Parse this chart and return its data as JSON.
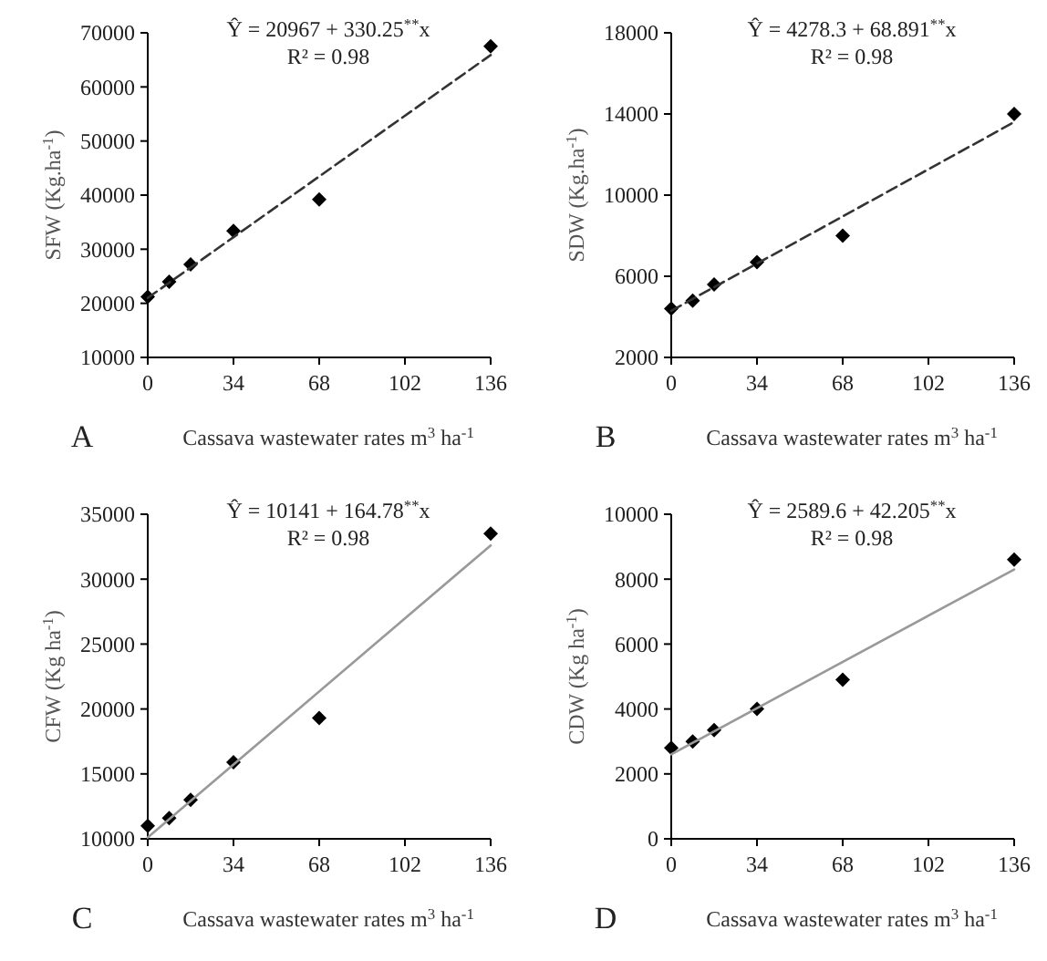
{
  "chart_data": [
    {
      "type": "scatter",
      "ylabel": "SFW (Kg.ha$^{-1}$)",
      "xlabel": "Cassava wastewater rates m$^{3}$ ha$^{-1}$",
      "annotations": [
        "Ŷ = 20967 + 330.25$^{**}$x",
        "R² = 0.98",
        "A"
      ],
      "xlim": [
        0,
        136
      ],
      "xticks": [
        0,
        34,
        68,
        102,
        136
      ],
      "ylim": [
        10000,
        70000
      ],
      "yticks": [
        10000,
        20000,
        30000,
        40000,
        50000,
        60000,
        70000
      ],
      "series": [
        {
          "color": "#000000",
          "marker": "diamond",
          "x": [
            0,
            8.5,
            17,
            34,
            68,
            136
          ],
          "values": [
            21200,
            24000,
            27200,
            33400,
            39200,
            67500
          ]
        },
        {
          "type": "line",
          "color": "#333333",
          "line_style": "dashed",
          "x": [
            0,
            136
          ],
          "values": [
            21000,
            65900
          ]
        }
      ]
    },
    {
      "type": "scatter",
      "ylabel": "SDW (Kg.ha$^{-1}$)",
      "xlabel": "Cassava wastewater rates m$^{3}$ ha$^{-1}$",
      "annotations": [
        "Ŷ = 4278.3 + 68.891$^{**}$x",
        "R² = 0.98",
        "B"
      ],
      "xlim": [
        0,
        136
      ],
      "xticks": [
        0,
        34,
        68,
        102,
        136
      ],
      "ylim": [
        2000,
        18000
      ],
      "yticks": [
        2000,
        6000,
        10000,
        14000,
        18000
      ],
      "series": [
        {
          "color": "#000000",
          "marker": "diamond",
          "x": [
            0,
            8.5,
            17,
            34,
            68,
            136
          ],
          "values": [
            4400,
            4800,
            5600,
            6700,
            8000,
            14000
          ]
        },
        {
          "type": "line",
          "color": "#333333",
          "line_style": "dashed",
          "x": [
            0,
            136
          ],
          "values": [
            4300,
            13600
          ]
        }
      ]
    },
    {
      "type": "scatter",
      "ylabel": "CFW (Kg ha$^{-1}$)",
      "xlabel": "Cassava wastewater rates m$^{3}$ ha$^{-1}$",
      "annotations": [
        "Ŷ = 10141 + 164.78$^{**}$x",
        "R² = 0.98",
        "C"
      ],
      "xlim": [
        0,
        136
      ],
      "xticks": [
        0,
        34,
        68,
        102,
        136
      ],
      "ylim": [
        10000,
        35000
      ],
      "yticks": [
        10000,
        15000,
        20000,
        25000,
        30000,
        35000
      ],
      "series": [
        {
          "color": "#000000",
          "marker": "diamond",
          "x": [
            0,
            8.5,
            17,
            34,
            68,
            136
          ],
          "values": [
            11000,
            11600,
            13000,
            15900,
            19300,
            33500
          ]
        },
        {
          "type": "line",
          "color": "#999999",
          "line_style": "solid",
          "x": [
            0,
            136
          ],
          "values": [
            10100,
            32600
          ]
        }
      ]
    },
    {
      "type": "scatter",
      "ylabel": "CDW (Kg ha$^{-1}$)",
      "xlabel": "Cassava wastewater rates m$^{3}$ ha$^{-1}$",
      "annotations": [
        "Ŷ =  2589.6 + 42.205$^{**}$x",
        "R² = 0.98",
        "D"
      ],
      "xlim": [
        0,
        136
      ],
      "xticks": [
        0,
        34,
        68,
        102,
        136
      ],
      "ylim": [
        0,
        10000
      ],
      "yticks": [
        0,
        2000,
        4000,
        6000,
        8000,
        10000
      ],
      "series": [
        {
          "color": "#000000",
          "marker": "diamond",
          "x": [
            0,
            8.5,
            17,
            34,
            68,
            136
          ],
          "values": [
            2800,
            3000,
            3350,
            4000,
            4900,
            8600
          ]
        },
        {
          "type": "line",
          "color": "#999999",
          "line_style": "solid",
          "x": [
            0,
            136
          ],
          "values": [
            2600,
            8300
          ]
        }
      ]
    }
  ]
}
